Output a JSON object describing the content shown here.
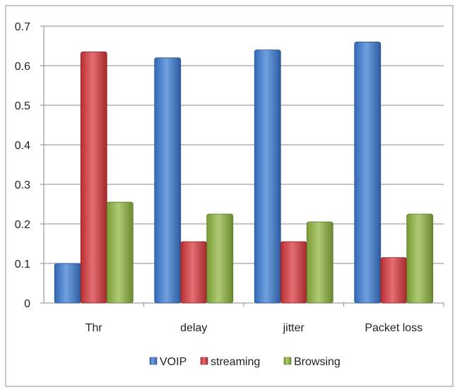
{
  "chart_data": {
    "type": "bar",
    "categories": [
      "Thr",
      "delay",
      "jitter",
      "Packet loss"
    ],
    "series": [
      {
        "name": "VOIP",
        "values": [
          0.1,
          0.62,
          0.64,
          0.66
        ]
      },
      {
        "name": "streaming",
        "values": [
          0.635,
          0.155,
          0.155,
          0.115
        ]
      },
      {
        "name": "Browsing",
        "values": [
          0.255,
          0.225,
          0.205,
          0.225
        ]
      }
    ],
    "ylim": [
      0,
      0.7
    ],
    "yticks": [
      "0",
      "0.1",
      "0.2",
      "0.3",
      "0.4",
      "0.5",
      "0.6",
      "0.7"
    ],
    "grid": true,
    "legend_position": "bottom",
    "colors": {
      "VOIP": "#3a7bd5",
      "streaming": "#d9363b",
      "Browsing": "#8fb73e"
    }
  }
}
